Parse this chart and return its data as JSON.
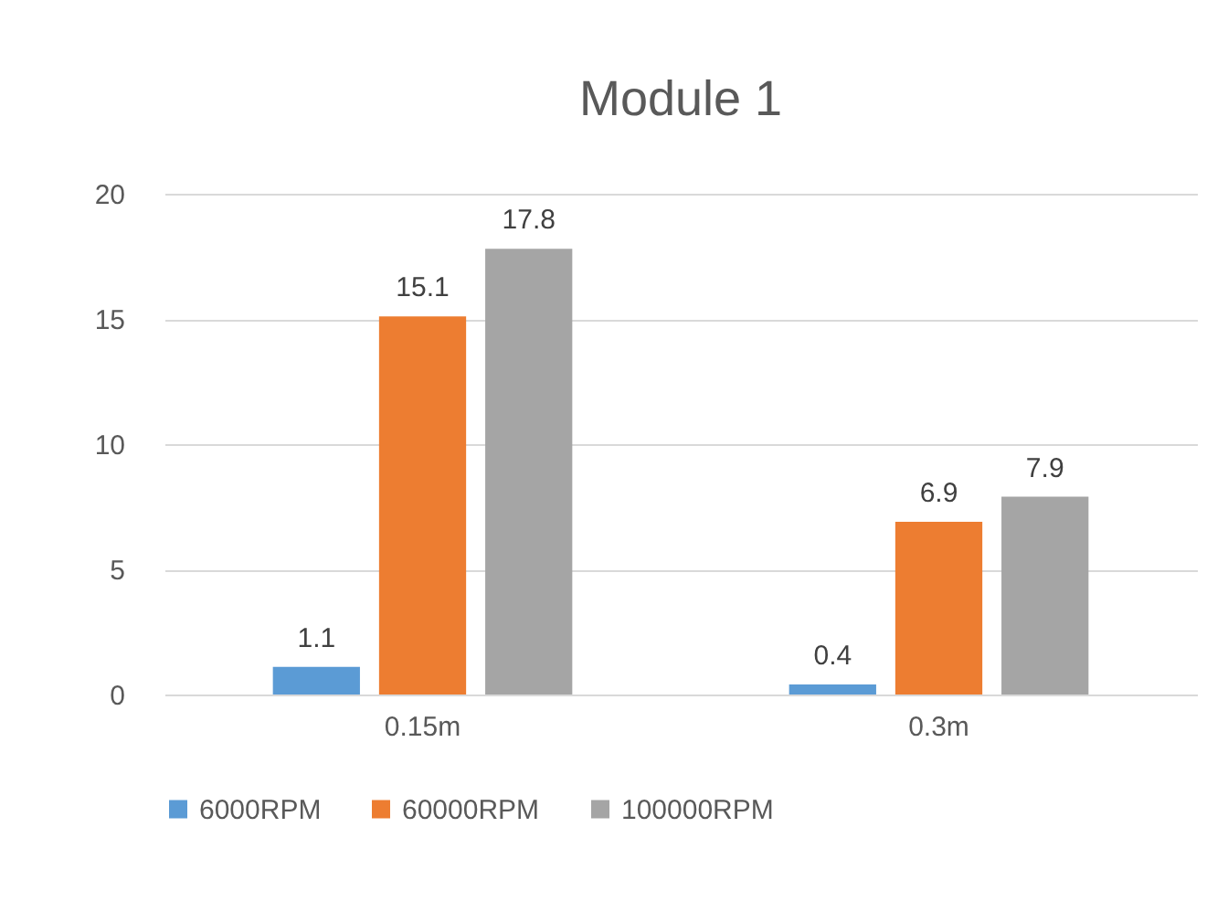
{
  "chart_data": {
    "type": "bar",
    "title": "Module 1",
    "categories": [
      "0.15m",
      "0.3m"
    ],
    "series": [
      {
        "name": "6000RPM",
        "color": "#5b9bd5",
        "values": [
          1.1,
          0.4
        ]
      },
      {
        "name": "60000RPM",
        "color": "#ed7d31",
        "values": [
          15.1,
          6.9
        ]
      },
      {
        "name": "100000RPM",
        "color": "#a5a5a5",
        "values": [
          17.8,
          7.9
        ]
      }
    ],
    "ylim": [
      0,
      20
    ],
    "yticks": [
      0,
      5,
      10,
      15,
      20
    ],
    "grid": "y",
    "legend": "bottom",
    "data_labels": true
  }
}
